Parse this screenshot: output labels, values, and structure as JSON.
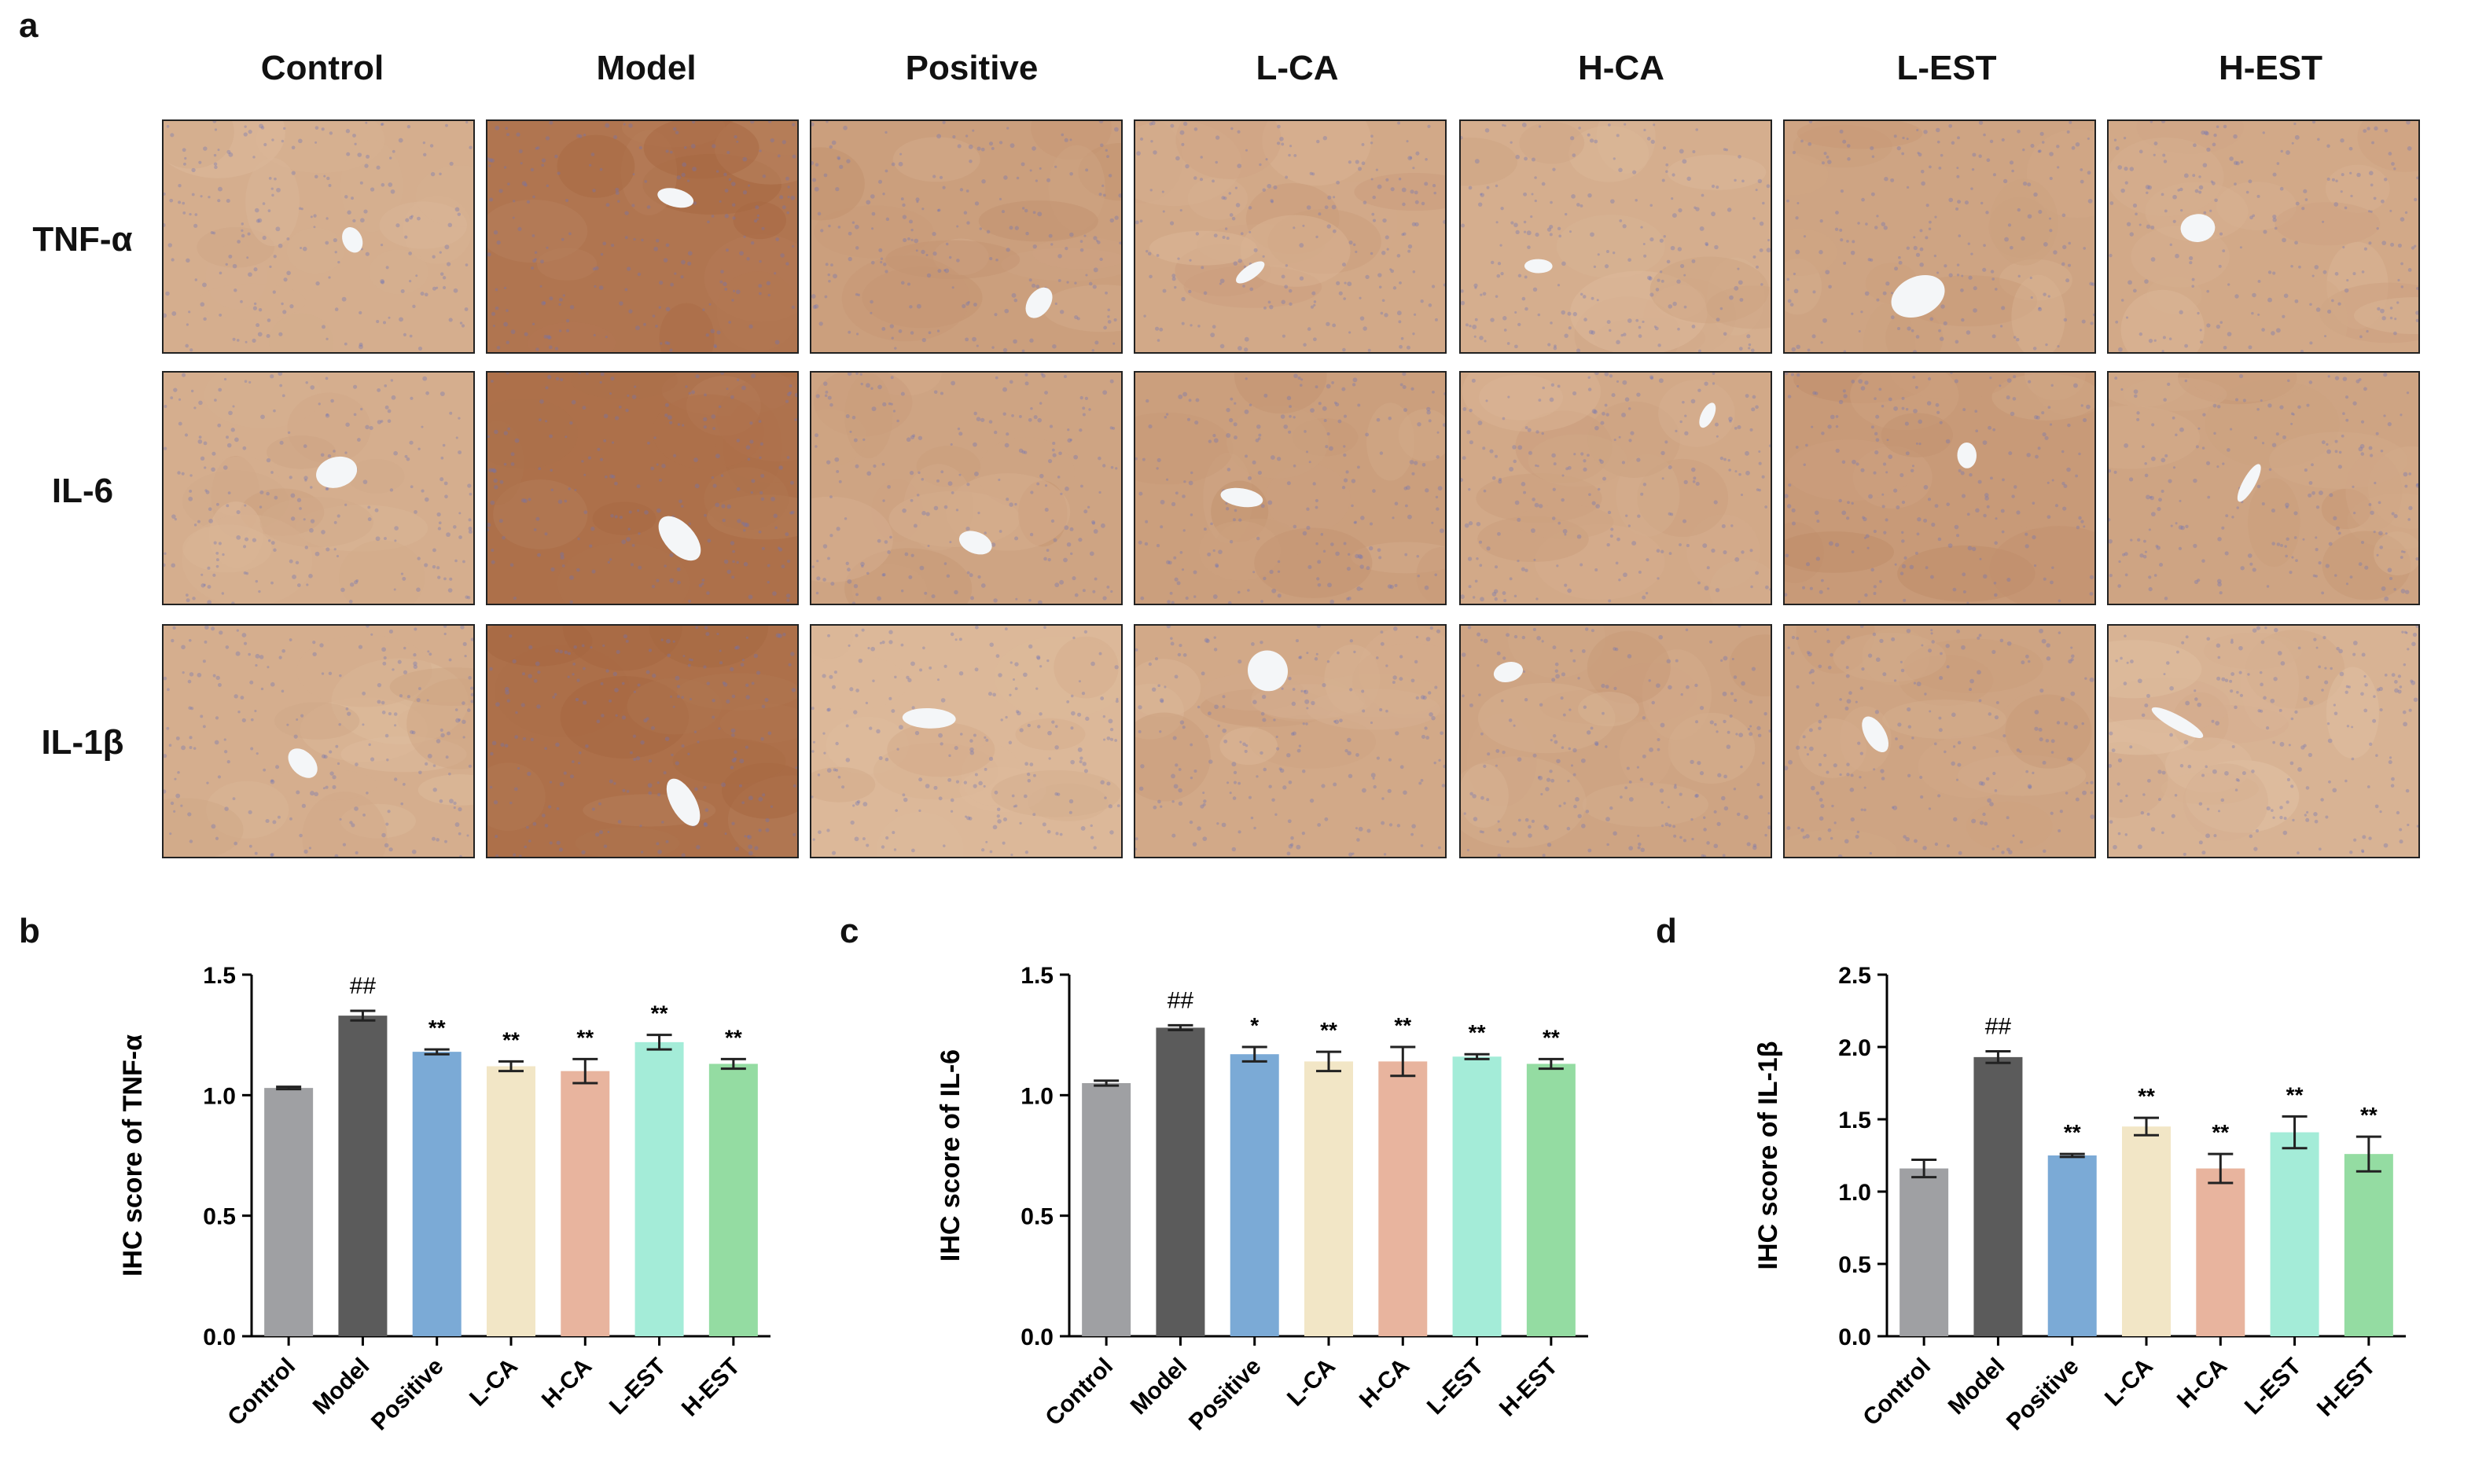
{
  "panel_letters": {
    "a": "a",
    "b": "b",
    "c": "c",
    "d": "d"
  },
  "groups": [
    "Control",
    "Model",
    "Positive",
    "L-CA",
    "H-CA",
    "L-EST",
    "H-EST"
  ],
  "markers": [
    "TNF-α",
    "IL-6",
    "IL-1β"
  ],
  "stain_intensity": [
    [
      0.3,
      0.85,
      0.45,
      0.35,
      0.3,
      0.4,
      0.35
    ],
    [
      0.3,
      0.9,
      0.4,
      0.45,
      0.35,
      0.5,
      0.4
    ],
    [
      0.3,
      0.9,
      0.2,
      0.35,
      0.4,
      0.4,
      0.25
    ]
  ],
  "colors": {
    "Control": "#9fa0a3",
    "Model": "#5b5b5b",
    "Positive": "#7baad6",
    "L-CA": "#f2e6c6",
    "H-CA": "#e8b49e",
    "L-EST": "#a4ecd8",
    "H-EST": "#94dca2",
    "tissue_light": "#e9cdb0",
    "tissue_dark": "#a6663f",
    "nuclei": "#6e74b8"
  },
  "chart_data": [
    {
      "type": "bar",
      "panel": "b",
      "categories": [
        "Control",
        "Model",
        "Positive",
        "L-CA",
        "H-CA",
        "L-EST",
        "H-EST"
      ],
      "values": [
        1.03,
        1.33,
        1.18,
        1.12,
        1.1,
        1.22,
        1.13
      ],
      "errors": [
        0.005,
        0.02,
        0.01,
        0.02,
        0.05,
        0.03,
        0.02
      ],
      "annotations": [
        "",
        "##",
        "**",
        "**",
        "**",
        "**",
        "**"
      ],
      "ylabel": "IHC score of TNF-α",
      "ylim": [
        0,
        1.5
      ],
      "yticks": [
        0.0,
        0.5,
        1.0,
        1.5
      ],
      "ytick_labels": [
        "0.0",
        "0.5",
        "1.0",
        "1.5"
      ]
    },
    {
      "type": "bar",
      "panel": "c",
      "categories": [
        "Control",
        "Model",
        "Positive",
        "L-CA",
        "H-CA",
        "L-EST",
        "H-EST"
      ],
      "values": [
        1.05,
        1.28,
        1.17,
        1.14,
        1.14,
        1.16,
        1.13
      ],
      "errors": [
        0.01,
        0.01,
        0.03,
        0.04,
        0.06,
        0.01,
        0.02
      ],
      "annotations": [
        "",
        "##",
        "*",
        "**",
        "**",
        "**",
        "**"
      ],
      "ylabel": "IHC score of IL-6",
      "ylim": [
        0,
        1.5
      ],
      "yticks": [
        0.0,
        0.5,
        1.0,
        1.5
      ],
      "ytick_labels": [
        "0.0",
        "0.5",
        "1.0",
        "1.5"
      ]
    },
    {
      "type": "bar",
      "panel": "d",
      "categories": [
        "Control",
        "Model",
        "Positive",
        "L-CA",
        "H-CA",
        "L-EST",
        "H-EST"
      ],
      "values": [
        1.16,
        1.93,
        1.25,
        1.45,
        1.16,
        1.41,
        1.26
      ],
      "errors": [
        0.06,
        0.04,
        0.01,
        0.06,
        0.1,
        0.11,
        0.12
      ],
      "annotations": [
        "",
        "##",
        "**",
        "**",
        "**",
        "**",
        "**"
      ],
      "ylabel": "IHC score of IL-1β",
      "ylim": [
        0,
        2.5
      ],
      "yticks": [
        0.0,
        0.5,
        1.0,
        1.5,
        2.0,
        2.5
      ],
      "ytick_labels": [
        "0.0",
        "0.5",
        "1.0",
        "1.5",
        "2.0",
        "2.5"
      ]
    }
  ]
}
